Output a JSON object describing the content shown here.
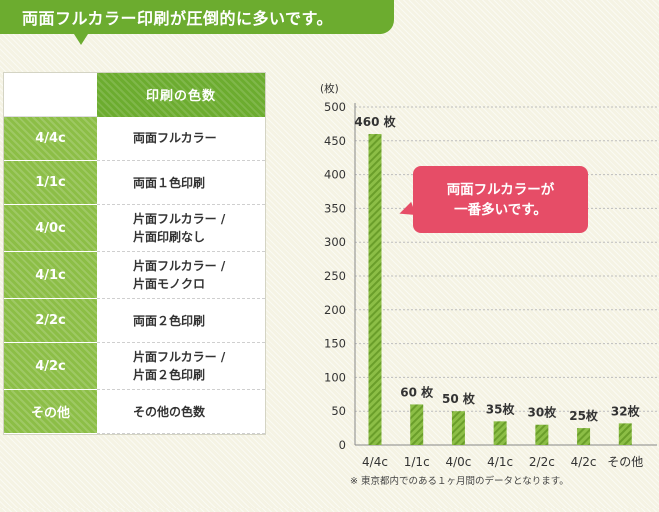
{
  "banner": {
    "title": "両面フルカラー印刷が圧倒的に多いです。"
  },
  "table": {
    "header": "印刷の色数",
    "rows": [
      {
        "code": "4/4c",
        "lines": [
          "両面フルカラー"
        ]
      },
      {
        "code": "1/1c",
        "lines": [
          "両面１色印刷"
        ]
      },
      {
        "code": "4/0c",
        "lines": [
          "片面フルカラー /",
          "片面印刷なし"
        ]
      },
      {
        "code": "4/1c",
        "lines": [
          "片面フルカラー /",
          "片面モノクロ"
        ]
      },
      {
        "code": "2/2c",
        "lines": [
          "両面２色印刷"
        ]
      },
      {
        "code": "4/2c",
        "lines": [
          "片面フルカラー /",
          "片面２色印刷"
        ]
      },
      {
        "code": "その他",
        "lines": [
          "その他の色数"
        ]
      }
    ]
  },
  "callout": {
    "line1": "両面フルカラーが",
    "line2": "一番多いです。"
  },
  "footnote": "※  東京都内でのある１ヶ月間のデータとなります。",
  "colors": {
    "bar": "#8cbe46",
    "bar_stripe": "#6a9e2a",
    "grid": "#bdbdbd"
  },
  "chart_data": {
    "type": "bar",
    "categories": [
      "4/4c",
      "1/1c",
      "4/0c",
      "4/1c",
      "2/2c",
      "4/2c",
      "その他"
    ],
    "values": [
      460,
      60,
      50,
      35,
      30,
      25,
      32
    ],
    "data_labels": [
      "460 枚",
      "60 枚",
      "50 枚",
      "35枚",
      "30枚",
      "25枚",
      "32枚"
    ],
    "ylabel": "(枚)",
    "yticks": [
      0,
      50,
      100,
      150,
      200,
      250,
      300,
      350,
      400,
      450,
      500
    ],
    "ylim": [
      0,
      500
    ],
    "grid": true
  }
}
